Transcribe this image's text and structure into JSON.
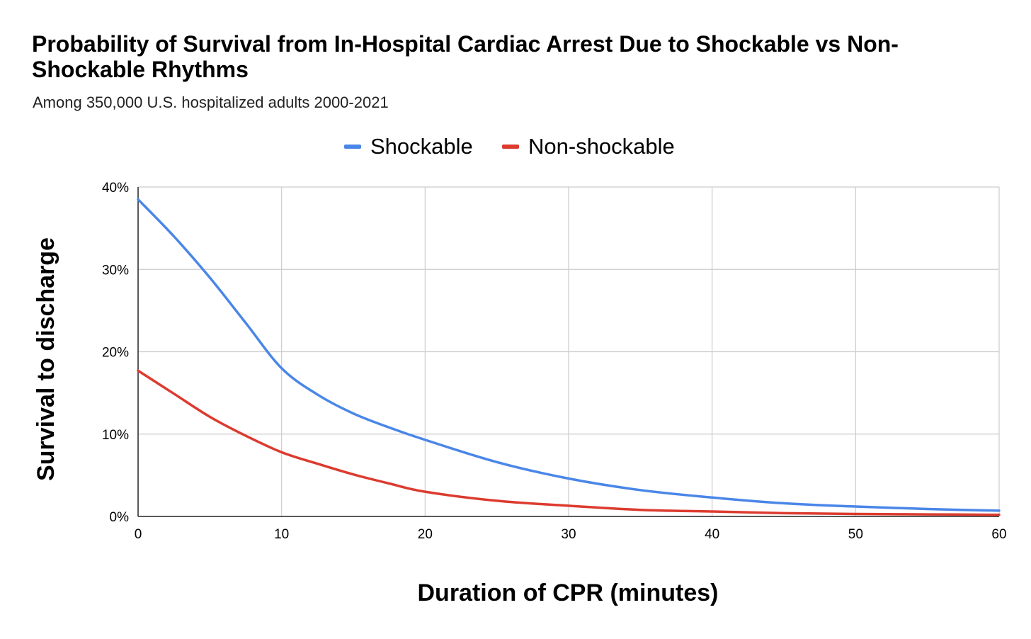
{
  "chart_data": {
    "type": "line",
    "title": "Probability of Survival from In-Hospital Cardiac Arrest Due to Shockable vs Non-Shockable Rhythms",
    "subtitle": "Among 350,000 U.S. hospitalized adults 2000-2021",
    "xlabel": "Duration of CPR (minutes)",
    "ylabel": "Survival to discharge",
    "xlim": [
      0,
      60
    ],
    "ylim": [
      0,
      40
    ],
    "x_ticks": [
      0,
      10,
      20,
      30,
      40,
      50,
      60
    ],
    "x_tick_labels": [
      "0",
      "10",
      "20",
      "30",
      "40",
      "50",
      "60"
    ],
    "y_ticks": [
      0,
      10,
      20,
      30,
      40
    ],
    "y_tick_labels": [
      "0%",
      "10%",
      "20%",
      "30%",
      "40%"
    ],
    "grid": true,
    "legend_position": "top",
    "x": [
      0,
      2.5,
      5,
      7.5,
      10,
      12.5,
      15,
      17.5,
      20,
      25,
      30,
      35,
      40,
      45,
      50,
      55,
      60
    ],
    "series": [
      {
        "name": "Shockable",
        "color": "#4a86e8",
        "values": [
          38.5,
          34.0,
          29.0,
          23.5,
          18.0,
          14.8,
          12.5,
          10.8,
          9.3,
          6.6,
          4.6,
          3.2,
          2.3,
          1.6,
          1.2,
          0.9,
          0.7
        ]
      },
      {
        "name": "Non-shockable",
        "color": "#dc3b2f",
        "values": [
          17.7,
          14.9,
          12.1,
          9.8,
          7.8,
          6.4,
          5.1,
          4.0,
          3.0,
          1.9,
          1.3,
          0.8,
          0.6,
          0.4,
          0.3,
          0.25,
          0.2
        ]
      }
    ]
  }
}
